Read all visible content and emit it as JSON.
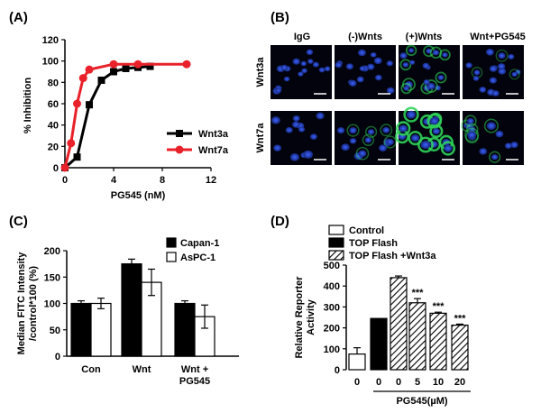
{
  "panels": {
    "a": {
      "label": "(A)"
    },
    "b": {
      "label": "(B)"
    },
    "c": {
      "label": "(C)"
    },
    "d": {
      "label": "(D)"
    }
  },
  "chart_data": [
    {
      "panel": "A",
      "type": "line",
      "xlabel": "PG545 (nM)",
      "ylabel": "% Inhibition",
      "xlim": [
        0,
        12
      ],
      "ylim": [
        0,
        120
      ],
      "xticks": [
        "0",
        "4",
        "8",
        "12"
      ],
      "yticks": [
        "0",
        "20",
        "40",
        "60",
        "80",
        "100",
        "120"
      ],
      "legend_position": "bottom-right",
      "series": [
        {
          "name": "Wnt3a",
          "color": "#000000",
          "marker": "square",
          "x": [
            0,
            1,
            2,
            3,
            4,
            5,
            6,
            7
          ],
          "y": [
            0,
            10,
            59,
            82,
            90,
            93,
            94,
            95
          ]
        },
        {
          "name": "Wnt7a",
          "color": "#e8212a",
          "marker": "circle",
          "x": [
            0,
            0.5,
            1,
            1.5,
            2,
            4,
            6,
            10
          ],
          "y": [
            0,
            23,
            60,
            84,
            92,
            97,
            97,
            97
          ]
        }
      ]
    },
    {
      "panel": "C",
      "type": "bar",
      "ylabel_lines": [
        "Median FITC Intensity",
        "/control*100 (%)"
      ],
      "ylim": [
        0,
        200
      ],
      "yticks": [
        "0",
        "50",
        "100",
        "150",
        "200"
      ],
      "categories": [
        [
          "Con"
        ],
        [
          "Wnt"
        ],
        [
          "Wnt +",
          "PG545"
        ]
      ],
      "legend_position": "top-right",
      "series": [
        {
          "name": "Capan-1",
          "fill": "#000000",
          "values": [
            100,
            175,
            100
          ],
          "errors": [
            5,
            9,
            5
          ]
        },
        {
          "name": "AsPC-1",
          "fill": "#ffffff",
          "values": [
            100,
            140,
            75
          ],
          "errors": [
            10,
            25,
            22
          ]
        }
      ]
    },
    {
      "panel": "D",
      "type": "bar",
      "ylabel_lines": [
        "Relative Reporter",
        "Activity"
      ],
      "xlabel": "PG545(µM)",
      "ylim": [
        0,
        500
      ],
      "yticks": [
        "0",
        "100",
        "200",
        "300",
        "400",
        "500"
      ],
      "categories": [
        "0",
        "0",
        "0",
        "5",
        "10",
        "20"
      ],
      "legend_position": "top",
      "legend": [
        {
          "name": "Control",
          "fill": "white"
        },
        {
          "name": "TOP Flash",
          "fill": "black"
        },
        {
          "name": "TOP Flash +Wnt3a",
          "fill": "hatch"
        }
      ],
      "bars": [
        {
          "group": "Control",
          "value": 75,
          "error": 30,
          "annotation": ""
        },
        {
          "group": "TOP Flash",
          "value": 245,
          "error": 0,
          "annotation": ""
        },
        {
          "group": "TOP Flash +Wnt3a",
          "value": 440,
          "error": 8,
          "annotation": ""
        },
        {
          "group": "TOP Flash +Wnt3a",
          "value": 320,
          "error": 20,
          "annotation": "***"
        },
        {
          "group": "TOP Flash +Wnt3a",
          "value": 270,
          "error": 5,
          "annotation": "***"
        },
        {
          "group": "TOP Flash +Wnt3a",
          "value": 213,
          "error": 5,
          "annotation": "***"
        }
      ]
    }
  ],
  "micrographs": {
    "columns": [
      "IgG",
      "(-)Wnts",
      "(+)Wnts",
      "Wnt+PG545"
    ],
    "rows": [
      "Wnt3a",
      "Wnt7a"
    ],
    "stain_colors": [
      "#1e3fd0",
      "#2fd35a"
    ]
  }
}
